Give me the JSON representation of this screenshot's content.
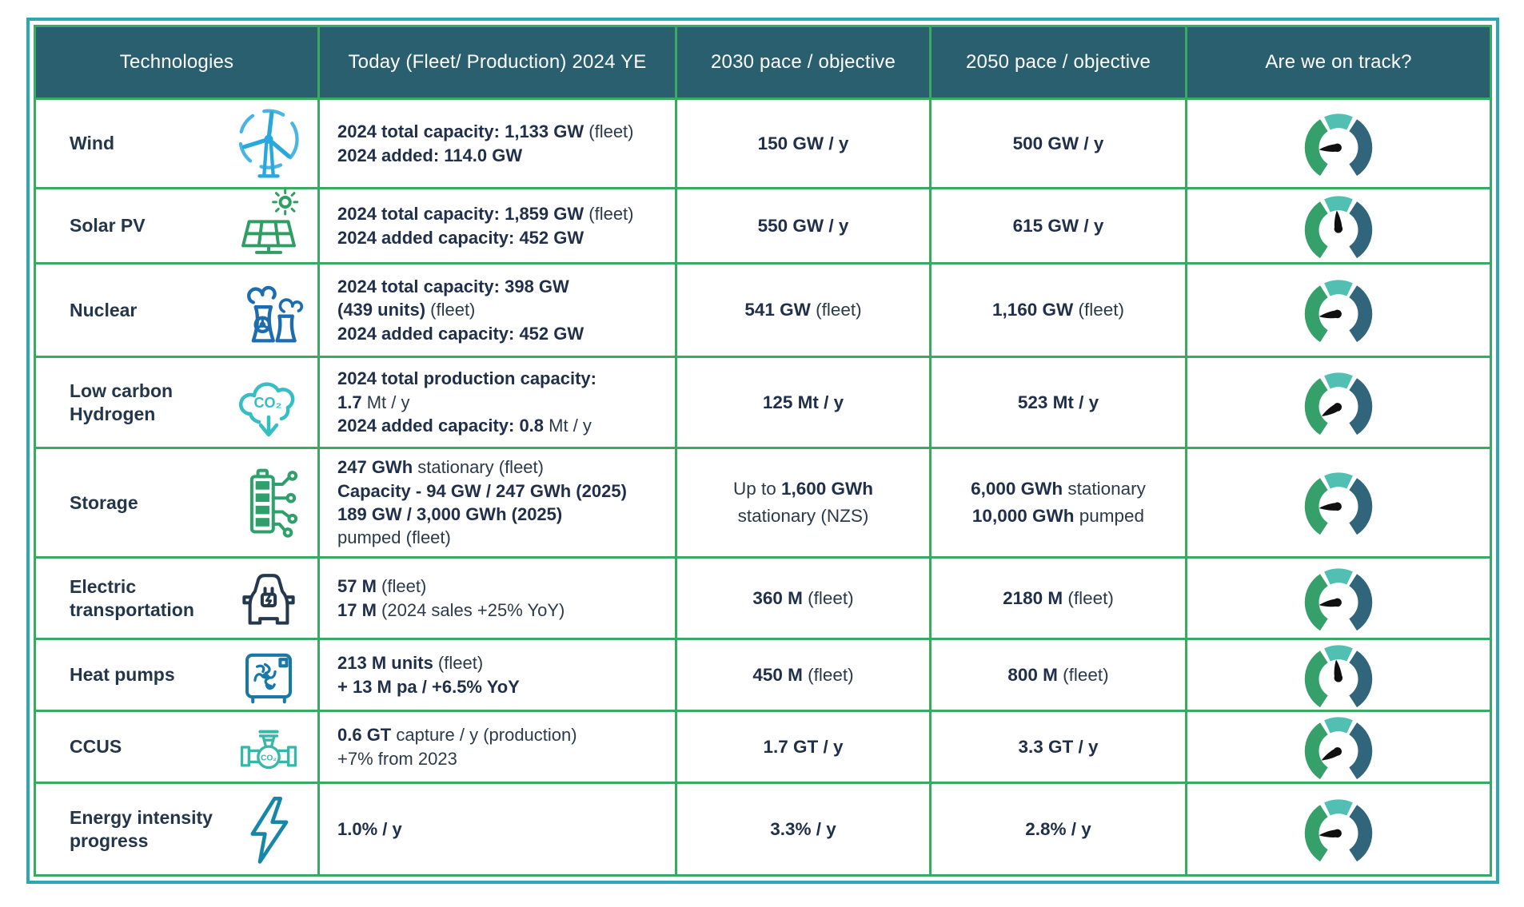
{
  "header": {
    "columns": [
      {
        "label": "Technologies"
      },
      {
        "label": "Today (Fleet/ Production) 2024 YE"
      },
      {
        "label": "2030 pace / objective"
      },
      {
        "label": "2050 pace / objective"
      },
      {
        "label": "Are we on track?"
      }
    ]
  },
  "colors": {
    "header_bg": "#2A5F6F",
    "outer_border": "#2BA8B0",
    "grid_line": "#3AA963",
    "text": "#2B3A4A",
    "gauge_green": "#35A06A",
    "gauge_teal": "#52BFB3",
    "gauge_dark": "#31657B",
    "gauge_needle": "#101010"
  },
  "rows": [
    {
      "tech": "Wind",
      "icon": "wind-turbine-icon",
      "icon_color": "#29A8DF",
      "today": [
        "**2024 total capacity: 1,133 GW** (fleet)",
        "**2024 added: 114.0 GW**"
      ],
      "p2030": [
        "**150 GW / y**"
      ],
      "p2050": [
        "**500 GW / y**"
      ],
      "gauge_needle_deg": 186
    },
    {
      "tech": "Solar PV",
      "icon": "solar-panel-icon",
      "icon_color": "#2F9E62",
      "today": [
        "**2024 total capacity: 1,859 GW** (fleet)",
        "**2024 added capacity: 452 GW**"
      ],
      "p2030": [
        "**550 GW / y**"
      ],
      "p2050": [
        "**615 GW / y**"
      ],
      "gauge_needle_deg": 95
    },
    {
      "tech": "Nuclear",
      "icon": "nuclear-plant-icon",
      "icon_color": "#1E6CB0",
      "today": [
        "**2024 total capacity: 398 GW**",
        "**(439 units)** (fleet)",
        "**2024 added capacity: 452 GW**"
      ],
      "p2030": [
        "**541 GW** (fleet)"
      ],
      "p2050": [
        "**1,160 GW** (fleet)"
      ],
      "gauge_needle_deg": 188
    },
    {
      "tech": "Low carbon Hydrogen",
      "icon": "co2-cloud-icon",
      "icon_color": "#35BEC4",
      "today": [
        "**2024 total production capacity:**",
        "**1.7** Mt / y",
        "**2024 added capacity: 0.8** Mt / y"
      ],
      "p2030": [
        "**125 Mt / y**"
      ],
      "p2050": [
        "**523 Mt / y**"
      ],
      "gauge_needle_deg": 210
    },
    {
      "tech": "Storage",
      "icon": "battery-circuit-icon",
      "icon_color": "#2FA06B",
      "today": [
        "**247 GWh** stationary (fleet)",
        "**Capacity - 94 GW / 247 GWh (2025)**",
        "**189 GW / 3,000 GWh (2025)**",
        "pumped (fleet)"
      ],
      "p2030": [
        "Up to **1,600 GWh**",
        "stationary (NZS)"
      ],
      "p2050": [
        "**6,000 GWh** stationary",
        "**10,000 GWh** pumped"
      ],
      "gauge_needle_deg": 185
    },
    {
      "tech": "Electric transportation",
      "icon": "electric-vehicle-icon",
      "icon_color": "#24384E",
      "today": [
        "**57 M** (fleet)",
        "**17 M** (2024 sales +25% YoY)"
      ],
      "p2030": [
        "**360 M** (fleet)"
      ],
      "p2050": [
        "**2180 M** (fleet)"
      ],
      "gauge_needle_deg": 188
    },
    {
      "tech": "Heat pumps",
      "icon": "heat-pump-icon",
      "icon_color": "#1879A8",
      "today": [
        "**213 M units** (fleet)",
        "**+ 13 M pa / +6.5% YoY**"
      ],
      "p2030": [
        "**450 M** (fleet)"
      ],
      "p2050": [
        "**800 M** (fleet)"
      ],
      "gauge_needle_deg": 97
    },
    {
      "tech": "CCUS",
      "icon": "ccus-pipeline-icon",
      "icon_color": "#36B8A8",
      "today": [
        "**0.6 GT** capture / y (production)",
        "+7% from 2023"
      ],
      "p2030": [
        "**1.7 GT / y**"
      ],
      "p2050": [
        "**3.3 GT / y**"
      ],
      "gauge_needle_deg": 209
    },
    {
      "tech": "Energy intensity progress",
      "icon": "lightning-bolt-icon",
      "icon_color": "#1787A8",
      "today": [
        "**1.0% / y**"
      ],
      "p2030": [
        "**3.3% / y**"
      ],
      "p2050": [
        "**2.8% / y**"
      ],
      "gauge_needle_deg": 186
    }
  ],
  "chart_data": {
    "type": "table",
    "title": "Energy technologies deployment tracker",
    "columns": [
      "Technologies",
      "Today (Fleet/ Production) 2024 YE",
      "2030 pace / objective",
      "2050 pace / objective",
      "Are we on track?"
    ],
    "rows": [
      [
        "Wind",
        "2024 total capacity: 1,133 GW (fleet); 2024 added: 114.0 GW",
        "150 GW / y",
        "500 GW / y",
        "gauge needle 186° (left / mid-low)"
      ],
      [
        "Solar PV",
        "2024 total capacity: 1,859 GW (fleet); 2024 added capacity: 452 GW",
        "550 GW / y",
        "615 GW / y",
        "gauge needle 95° (up / mid)"
      ],
      [
        "Nuclear",
        "2024 total capacity: 398 GW (439 units) (fleet); 2024 added capacity: 452 GW",
        "541 GW (fleet)",
        "1,160 GW (fleet)",
        "gauge needle 188° (left / mid-low)"
      ],
      [
        "Low carbon Hydrogen",
        "2024 total production capacity: 1.7 Mt / y; 2024 added capacity: 0.8 Mt / y",
        "125 Mt / y",
        "523 Mt / y",
        "gauge needle 210° (lower-left / low)"
      ],
      [
        "Storage",
        "247 GWh stationary (fleet); Capacity - 94 GW / 247 GWh (2025); 189 GW / 3,000 GWh (2025) pumped (fleet)",
        "Up to 1,600 GWh stationary (NZS)",
        "6,000 GWh stationary; 10,000 GWh pumped",
        "gauge needle 185° (left / mid-low)"
      ],
      [
        "Electric transportation",
        "57 M (fleet); 17 M (2024 sales +25% YoY)",
        "360 M (fleet)",
        "2180 M (fleet)",
        "gauge needle 188° (left / mid-low)"
      ],
      [
        "Heat pumps",
        "213 M units (fleet); + 13 M pa / +6.5% YoY",
        "450 M (fleet)",
        "800 M (fleet)",
        "gauge needle 97° (up / mid)"
      ],
      [
        "CCUS",
        "0.6 GT capture / y (production); +7% from 2023",
        "1.7 GT / y",
        "3.3 GT / y",
        "gauge needle 209° (lower-left / low)"
      ],
      [
        "Energy intensity progress",
        "1.0% / y",
        "3.3% / y",
        "2.8% / y",
        "gauge needle 186° (left / mid-low)"
      ]
    ],
    "layout": {
      "grid": true,
      "header_bg": "#2A5F6F",
      "grid_line_color": "#3AA963",
      "outer_border_color": "#2BA8B0"
    }
  }
}
